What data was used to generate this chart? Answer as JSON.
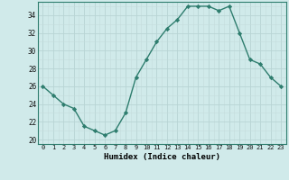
{
  "x": [
    0,
    1,
    2,
    3,
    4,
    5,
    6,
    7,
    8,
    9,
    10,
    11,
    12,
    13,
    14,
    15,
    16,
    17,
    18,
    19,
    20,
    21,
    22,
    23
  ],
  "y": [
    26,
    25,
    24,
    23.5,
    21.5,
    21,
    20.5,
    21,
    23,
    27,
    29,
    31,
    32.5,
    33.5,
    35,
    35,
    35,
    34.5,
    35,
    32,
    29,
    28.5,
    27,
    26
  ],
  "xlabel": "Humidex (Indice chaleur)",
  "xlim": [
    -0.5,
    23.5
  ],
  "ylim": [
    19.5,
    35.5
  ],
  "yticks": [
    20,
    22,
    24,
    26,
    28,
    30,
    32,
    34
  ],
  "xticks": [
    0,
    1,
    2,
    3,
    4,
    5,
    6,
    7,
    8,
    9,
    10,
    11,
    12,
    13,
    14,
    15,
    16,
    17,
    18,
    19,
    20,
    21,
    22,
    23
  ],
  "line_color": "#2e7d6e",
  "marker": "D",
  "marker_size": 2.2,
  "bg_color": "#d0eaea",
  "grid_major_color": "#b8d4d4",
  "grid_minor_color": "#c4dcdc",
  "spine_color": "#2e7d6e"
}
